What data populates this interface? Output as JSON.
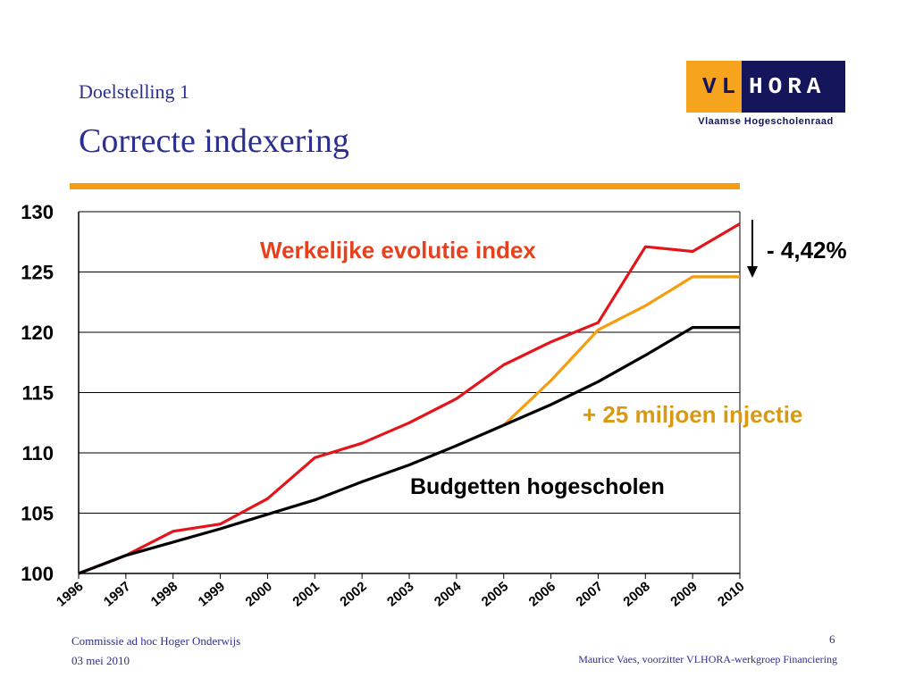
{
  "slide": {
    "subtitle": "Doelstelling 1",
    "title": "Correcte indexering",
    "logo": {
      "left_text": "VL",
      "right_text": "HORA",
      "tagline": "Vlaamse Hogescholenraad",
      "colors": {
        "orange": "#f6a31d",
        "navy": "#14155a"
      }
    },
    "accent_rule_color": "#f59d0f",
    "footer": {
      "left_line1": "Commissie ad hoc Hoger Onderwijs",
      "left_line2": "03 mei 2010",
      "page_number": "6",
      "right_line": "Maurice Vaes, voorzitter VLHORA-werkgroep Financiering"
    }
  },
  "chart_data": {
    "type": "line",
    "x": [
      "1996",
      "1997",
      "1998",
      "1999",
      "2000",
      "2001",
      "2002",
      "2003",
      "2004",
      "2005",
      "2006",
      "2007",
      "2008",
      "2009",
      "2010"
    ],
    "ylim": [
      100,
      130
    ],
    "yticks": [
      "100",
      "105",
      "110",
      "115",
      "120",
      "125",
      "130"
    ],
    "grid": true,
    "series": [
      {
        "name": "Werkelijke evolutie index",
        "color": "#e3151b",
        "values": [
          100,
          101.5,
          103.5,
          104.1,
          106.2,
          109.6,
          110.8,
          112.5,
          114.5,
          117.3,
          119.2,
          120.8,
          127.1,
          126.7,
          129.0
        ]
      },
      {
        "name": "+ 25 miljoen injectie",
        "color": "#f59d0f",
        "values": [
          null,
          null,
          null,
          null,
          null,
          null,
          null,
          null,
          null,
          112.3,
          116.0,
          120.2,
          122.2,
          124.6,
          124.6
        ]
      },
      {
        "name": "Budgetten hogescholen",
        "color": "#000000",
        "values": [
          100,
          101.5,
          102.6,
          103.7,
          104.9,
          106.1,
          107.6,
          109.0,
          110.6,
          112.3,
          114.0,
          115.9,
          118.1,
          120.4,
          120.4
        ]
      }
    ],
    "annotations": {
      "gap_label": "- 4,42%"
    }
  }
}
